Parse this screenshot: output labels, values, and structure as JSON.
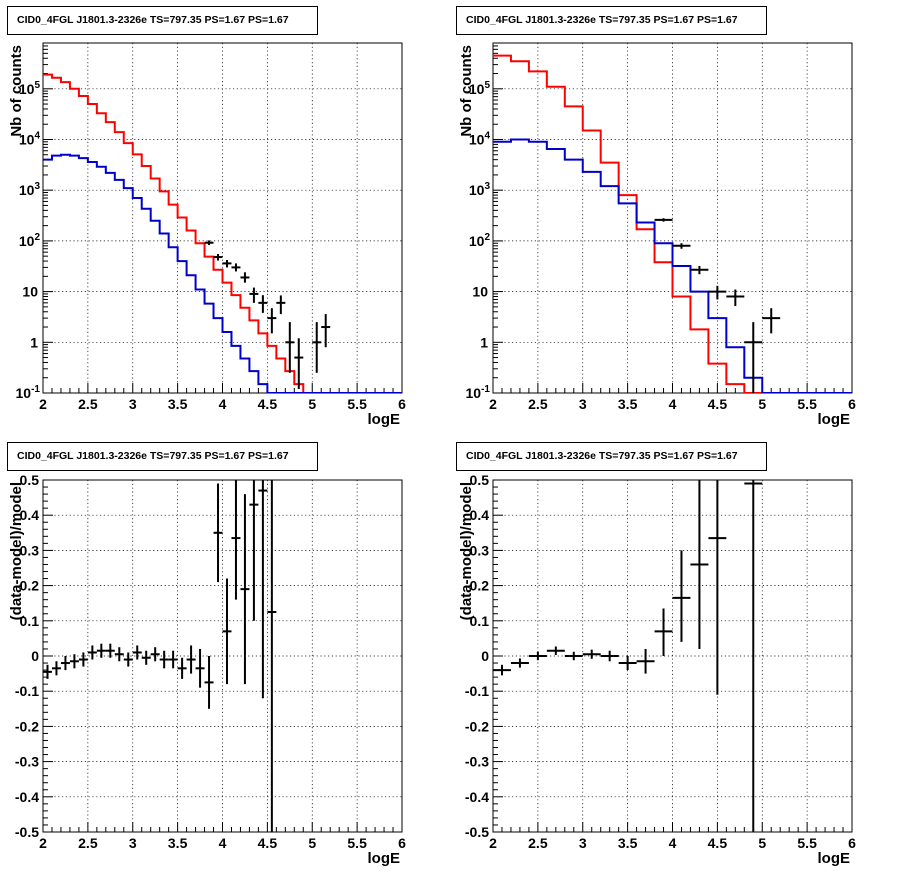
{
  "window": {
    "background": "#ffffff"
  },
  "colors": {
    "data": "#000000",
    "model_total": "#ff0000",
    "model_component": "#0000cc",
    "grid": "#000000"
  },
  "chart_data": [
    {
      "type": "line",
      "title": "CID0_4FGL J1801.3-2326e TS=797.35 PS=1.67 PS=1.67",
      "xlabel": "logE",
      "ylabel": "Nb of counts",
      "xlim": [
        2,
        6
      ],
      "ylim": [
        0.1,
        800000
      ],
      "yscale": "log",
      "grid": true,
      "x_ticks": [
        "2",
        "2.5",
        "3",
        "3.5",
        "4",
        "4.5",
        "5",
        "5.5",
        "6"
      ],
      "y_ticks": [
        "10^-1",
        "1",
        "10",
        "10^2",
        "10^3",
        "10^4",
        "10^5"
      ],
      "series": [
        {
          "role": "model_total",
          "color": "#ff0000",
          "style": "histogram",
          "bin_edges": [
            2,
            2.1,
            2.2,
            2.3,
            2.4,
            2.5,
            2.6,
            2.7,
            2.8,
            2.9,
            3,
            3.1,
            3.2,
            3.3,
            3.4,
            3.5,
            3.6,
            3.7,
            3.8,
            3.9,
            4,
            4.1,
            4.2,
            4.3,
            4.4,
            4.5,
            4.6,
            4.7,
            4.8,
            4.9,
            5,
            5.1,
            5.2,
            5.3,
            5.4,
            5.5,
            5.6,
            5.7,
            5.8,
            5.9,
            6
          ],
          "values": [
            190000,
            165000,
            135000,
            100000,
            72000,
            50000,
            33000,
            22000,
            14000,
            8500,
            5100,
            3000,
            1700,
            950,
            520,
            290,
            160,
            90,
            49,
            27,
            15,
            8.5,
            4.8,
            2.7,
            1.5,
            0.85,
            0.48,
            0.27,
            0.15,
            0.09,
            0.09,
            0.09,
            0.09,
            0.09,
            0.09,
            0.09,
            0.09,
            0.09,
            0.09,
            0.09
          ]
        },
        {
          "role": "model_component",
          "color": "#0000cc",
          "style": "histogram",
          "bin_edges": [
            2,
            2.1,
            2.2,
            2.3,
            2.4,
            2.5,
            2.6,
            2.7,
            2.8,
            2.9,
            3,
            3.1,
            3.2,
            3.3,
            3.4,
            3.5,
            3.6,
            3.7,
            3.8,
            3.9,
            4,
            4.1,
            4.2,
            4.3,
            4.4,
            4.5,
            4.6,
            4.7,
            4.8,
            4.9,
            5,
            5.1,
            5.2,
            5.3,
            5.4,
            5.5,
            5.6,
            5.7,
            5.8,
            5.9,
            6
          ],
          "values": [
            4000,
            4800,
            5000,
            4800,
            4300,
            3600,
            2900,
            2200,
            1600,
            1100,
            700,
            430,
            250,
            140,
            75,
            40,
            21,
            11,
            5.8,
            3.0,
            1.6,
            0.85,
            0.48,
            0.27,
            0.15,
            0.09,
            0.09,
            0.09,
            0.09,
            0.09,
            0.09,
            0.09,
            0.09,
            0.09,
            0.09,
            0.09,
            0.09,
            0.09,
            0.09,
            0.09
          ]
        },
        {
          "role": "data",
          "color": "#000000",
          "style": "points",
          "points": [
            {
              "x": 3.85,
              "y": 92,
              "xerr": 0.05,
              "ylo": 83,
              "yhi": 102
            },
            {
              "x": 3.95,
              "y": 48,
              "xerr": 0.05,
              "ylo": 41,
              "yhi": 55
            },
            {
              "x": 4.05,
              "y": 36,
              "xerr": 0.05,
              "ylo": 30,
              "yhi": 42
            },
            {
              "x": 4.15,
              "y": 30,
              "xerr": 0.05,
              "ylo": 25,
              "yhi": 36
            },
            {
              "x": 4.25,
              "y": 19,
              "xerr": 0.05,
              "ylo": 15,
              "yhi": 24
            },
            {
              "x": 4.35,
              "y": 9,
              "xerr": 0.05,
              "ylo": 6,
              "yhi": 12
            },
            {
              "x": 4.45,
              "y": 6,
              "xerr": 0.05,
              "ylo": 3.8,
              "yhi": 8.5
            },
            {
              "x": 4.55,
              "y": 3,
              "xerr": 0.05,
              "ylo": 1.5,
              "yhi": 4.7
            },
            {
              "x": 4.65,
              "y": 6,
              "xerr": 0.05,
              "ylo": 3.6,
              "yhi": 8.4
            },
            {
              "x": 4.75,
              "y": 1,
              "xerr": 0.05,
              "ylo": 0.25,
              "yhi": 2.5
            },
            {
              "x": 4.85,
              "y": 0.5,
              "xerr": 0.05,
              "ylo": 0.12,
              "yhi": 1.2
            },
            {
              "x": 5.05,
              "y": 1,
              "xerr": 0.05,
              "ylo": 0.25,
              "yhi": 2.5
            },
            {
              "x": 5.15,
              "y": 2,
              "xerr": 0.05,
              "ylo": 0.8,
              "yhi": 3.6
            }
          ]
        }
      ]
    },
    {
      "type": "line",
      "title": "CID0_4FGL J1801.3-2326e TS=797.35 PS=1.67 PS=1.67",
      "xlabel": "logE",
      "ylabel": "Nb of counts",
      "xlim": [
        2,
        6
      ],
      "ylim": [
        0.1,
        800000
      ],
      "yscale": "log",
      "grid": true,
      "x_ticks": [
        "2",
        "2.5",
        "3",
        "3.5",
        "4",
        "4.5",
        "5",
        "5.5",
        "6"
      ],
      "y_ticks": [
        "10^-1",
        "1",
        "10",
        "10^2",
        "10^3",
        "10^4",
        "10^5"
      ],
      "series": [
        {
          "role": "model_total",
          "color": "#ff0000",
          "style": "histogram",
          "bin_edges": [
            2,
            2.2,
            2.4,
            2.6,
            2.8,
            3,
            3.2,
            3.4,
            3.6,
            3.8,
            4,
            4.2,
            4.4,
            4.6,
            4.8,
            5,
            5.2,
            5.4,
            5.6,
            5.8,
            6
          ],
          "values": [
            450000,
            350000,
            220000,
            110000,
            45000,
            15000,
            3500,
            800,
            170,
            38,
            8,
            1.8,
            0.38,
            0.15,
            0.09,
            0.09,
            0.09,
            0.09,
            0.09,
            0.09
          ]
        },
        {
          "role": "model_component",
          "color": "#0000cc",
          "style": "histogram",
          "bin_edges": [
            2,
            2.2,
            2.4,
            2.6,
            2.8,
            3,
            3.2,
            3.4,
            3.6,
            3.8,
            4,
            4.2,
            4.4,
            4.6,
            4.8,
            5,
            5.2,
            5.4,
            5.6,
            5.8,
            6
          ],
          "values": [
            9000,
            10000,
            9000,
            6500,
            4000,
            2300,
            1200,
            550,
            230,
            90,
            32,
            10,
            3.0,
            0.8,
            0.2,
            0.09,
            0.09,
            0.09,
            0.09,
            0.09
          ]
        },
        {
          "role": "data",
          "color": "#000000",
          "style": "points",
          "points": [
            {
              "x": 3.9,
              "y": 260,
              "xerr": 0.1,
              "ylo": 240,
              "yhi": 280
            },
            {
              "x": 4.1,
              "y": 80,
              "xerr": 0.1,
              "ylo": 70,
              "yhi": 90
            },
            {
              "x": 4.3,
              "y": 27,
              "xerr": 0.1,
              "ylo": 22,
              "yhi": 32
            },
            {
              "x": 4.5,
              "y": 10,
              "xerr": 0.1,
              "ylo": 7,
              "yhi": 13
            },
            {
              "x": 4.7,
              "y": 8,
              "xerr": 0.1,
              "ylo": 5.2,
              "yhi": 11
            },
            {
              "x": 4.9,
              "y": 1,
              "xerr": 0.1,
              "ylo": 0.1,
              "yhi": 2.5
            },
            {
              "x": 5.1,
              "y": 3,
              "xerr": 0.1,
              "ylo": 1.5,
              "yhi": 4.7
            }
          ]
        }
      ]
    },
    {
      "type": "scatter",
      "title": "CID0_4FGL J1801.3-2326e TS=797.35 PS=1.67 PS=1.67",
      "xlabel": "logE",
      "ylabel": "(data-model)/model",
      "xlim": [
        2,
        6
      ],
      "ylim": [
        -0.5,
        0.5
      ],
      "yscale": "linear",
      "grid": true,
      "x_ticks": [
        "2",
        "2.5",
        "3",
        "3.5",
        "4",
        "4.5",
        "5",
        "5.5",
        "6"
      ],
      "y_ticks": [
        "-0.5",
        "-0.4",
        "-0.3",
        "-0.2",
        "-0.1",
        "0",
        "0.1",
        "0.2",
        "0.3",
        "0.4",
        "0.5"
      ],
      "series": [
        {
          "role": "data",
          "color": "#000000",
          "style": "points",
          "points": [
            {
              "x": 2.05,
              "y": -0.045,
              "xerr": 0.05,
              "ylo": -0.065,
              "yhi": -0.025
            },
            {
              "x": 2.15,
              "y": -0.035,
              "xerr": 0.05,
              "ylo": -0.055,
              "yhi": -0.015
            },
            {
              "x": 2.25,
              "y": -0.02,
              "xerr": 0.05,
              "ylo": -0.04,
              "yhi": 0.0
            },
            {
              "x": 2.35,
              "y": -0.015,
              "xerr": 0.05,
              "ylo": -0.035,
              "yhi": 0.005
            },
            {
              "x": 2.45,
              "y": -0.01,
              "xerr": 0.05,
              "ylo": -0.03,
              "yhi": 0.01
            },
            {
              "x": 2.55,
              "y": 0.01,
              "xerr": 0.05,
              "ylo": -0.01,
              "yhi": 0.03
            },
            {
              "x": 2.65,
              "y": 0.015,
              "xerr": 0.05,
              "ylo": -0.005,
              "yhi": 0.035
            },
            {
              "x": 2.75,
              "y": 0.015,
              "xerr": 0.05,
              "ylo": -0.005,
              "yhi": 0.035
            },
            {
              "x": 2.85,
              "y": 0.005,
              "xerr": 0.05,
              "ylo": -0.015,
              "yhi": 0.025
            },
            {
              "x": 2.95,
              "y": -0.01,
              "xerr": 0.05,
              "ylo": -0.03,
              "yhi": 0.01
            },
            {
              "x": 3.05,
              "y": 0.01,
              "xerr": 0.05,
              "ylo": -0.01,
              "yhi": 0.03
            },
            {
              "x": 3.15,
              "y": -0.005,
              "xerr": 0.05,
              "ylo": -0.025,
              "yhi": 0.015
            },
            {
              "x": 3.25,
              "y": 0.005,
              "xerr": 0.05,
              "ylo": -0.015,
              "yhi": 0.025
            },
            {
              "x": 3.35,
              "y": -0.01,
              "xerr": 0.05,
              "ylo": -0.035,
              "yhi": 0.015
            },
            {
              "x": 3.45,
              "y": -0.01,
              "xerr": 0.05,
              "ylo": -0.035,
              "yhi": 0.015
            },
            {
              "x": 3.55,
              "y": -0.035,
              "xerr": 0.05,
              "ylo": -0.065,
              "yhi": -0.005
            },
            {
              "x": 3.65,
              "y": -0.01,
              "xerr": 0.05,
              "ylo": -0.05,
              "yhi": 0.03
            },
            {
              "x": 3.75,
              "y": -0.035,
              "xerr": 0.05,
              "ylo": -0.09,
              "yhi": 0.02
            },
            {
              "x": 3.85,
              "y": -0.075,
              "xerr": 0.05,
              "ylo": -0.15,
              "yhi": 0.0
            },
            {
              "x": 3.95,
              "y": 0.35,
              "xerr": 0.05,
              "ylo": 0.21,
              "yhi": 0.49
            },
            {
              "x": 4.05,
              "y": 0.07,
              "xerr": 0.05,
              "ylo": -0.08,
              "yhi": 0.22
            },
            {
              "x": 4.15,
              "y": 0.335,
              "xerr": 0.05,
              "ylo": 0.16,
              "yhi": 0.5
            },
            {
              "x": 4.25,
              "y": 0.19,
              "xerr": 0.05,
              "ylo": -0.08,
              "yhi": 0.46
            },
            {
              "x": 4.35,
              "y": 0.43,
              "xerr": 0.05,
              "ylo": 0.1,
              "yhi": 0.76
            },
            {
              "x": 4.45,
              "y": 0.47,
              "xerr": 0.05,
              "ylo": -0.12,
              "yhi": 1.06
            },
            {
              "x": 4.55,
              "y": 0.125,
              "xerr": 0.05,
              "ylo": -0.7,
              "yhi": 0.95
            }
          ]
        }
      ]
    },
    {
      "type": "scatter",
      "title": "CID0_4FGL J1801.3-2326e TS=797.35 PS=1.67 PS=1.67",
      "xlabel": "logE",
      "ylabel": "(data-model)/model",
      "xlim": [
        2,
        6
      ],
      "ylim": [
        -0.5,
        0.5
      ],
      "yscale": "linear",
      "grid": true,
      "x_ticks": [
        "2",
        "2.5",
        "3",
        "3.5",
        "4",
        "4.5",
        "5",
        "5.5",
        "6"
      ],
      "y_ticks": [
        "-0.5",
        "-0.4",
        "-0.3",
        "-0.2",
        "-0.1",
        "0",
        "0.1",
        "0.2",
        "0.3",
        "0.4",
        "0.5"
      ],
      "series": [
        {
          "role": "data",
          "color": "#000000",
          "style": "points",
          "points": [
            {
              "x": 2.1,
              "y": -0.04,
              "xerr": 0.1,
              "ylo": -0.055,
              "yhi": -0.025
            },
            {
              "x": 2.3,
              "y": -0.02,
              "xerr": 0.1,
              "ylo": -0.033,
              "yhi": -0.007
            },
            {
              "x": 2.5,
              "y": 0.0,
              "xerr": 0.1,
              "ylo": -0.012,
              "yhi": 0.012
            },
            {
              "x": 2.7,
              "y": 0.015,
              "xerr": 0.1,
              "ylo": 0.003,
              "yhi": 0.027
            },
            {
              "x": 2.9,
              "y": 0.0,
              "xerr": 0.1,
              "ylo": -0.012,
              "yhi": 0.012
            },
            {
              "x": 3.1,
              "y": 0.005,
              "xerr": 0.1,
              "ylo": -0.008,
              "yhi": 0.018
            },
            {
              "x": 3.3,
              "y": 0.0,
              "xerr": 0.1,
              "ylo": -0.015,
              "yhi": 0.015
            },
            {
              "x": 3.5,
              "y": -0.02,
              "xerr": 0.1,
              "ylo": -0.04,
              "yhi": 0.0
            },
            {
              "x": 3.7,
              "y": -0.015,
              "xerr": 0.1,
              "ylo": -0.05,
              "yhi": 0.02
            },
            {
              "x": 3.9,
              "y": 0.07,
              "xerr": 0.1,
              "ylo": 0.0,
              "yhi": 0.135
            },
            {
              "x": 4.1,
              "y": 0.165,
              "xerr": 0.1,
              "ylo": 0.04,
              "yhi": 0.3
            },
            {
              "x": 4.3,
              "y": 0.26,
              "xerr": 0.1,
              "ylo": 0.02,
              "yhi": 0.5
            },
            {
              "x": 4.5,
              "y": 0.335,
              "xerr": 0.1,
              "ylo": -0.11,
              "yhi": 0.78
            },
            {
              "x": 4.9,
              "y": 0.49,
              "xerr": 0.1,
              "ylo": -0.6,
              "yhi": 1.58
            }
          ]
        }
      ]
    }
  ]
}
